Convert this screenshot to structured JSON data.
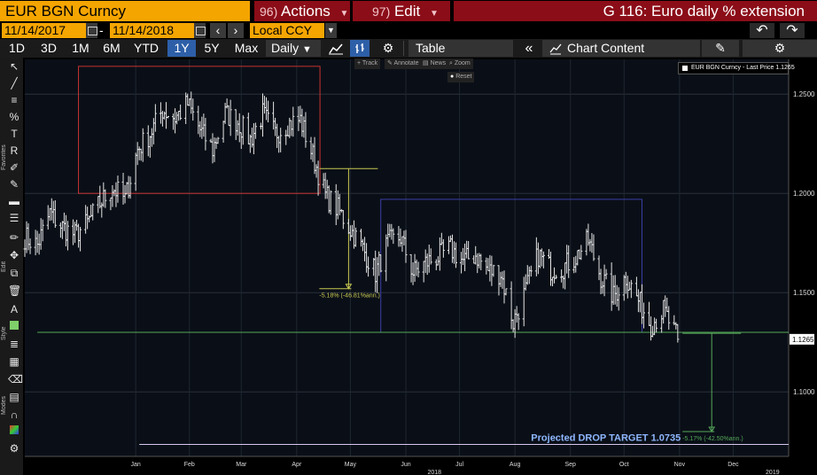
{
  "header": {
    "ticker": "EUR BGN Curncy",
    "actions_num": "96)",
    "actions_label": "Actions",
    "edit_num": "97)",
    "edit_label": "Edit",
    "title": "G 116: Euro daily % extension"
  },
  "daterow": {
    "from": "11/14/2017",
    "sep": "-",
    "to": "11/14/2018",
    "ccy": "Local CCY"
  },
  "toolbar": {
    "periods": [
      "1D",
      "3D",
      "1M",
      "6M",
      "YTD",
      "1Y",
      "5Y",
      "Max"
    ],
    "active_period": "1Y",
    "frequency": "Daily",
    "table_label": "Table",
    "content_label": "Chart Content"
  },
  "hud": {
    "track": "+ Track",
    "annotate": "Annotate",
    "news": "News",
    "zoom": "Zoom",
    "reset": "Reset"
  },
  "left_strip_labels": [
    "Favorites",
    "Edit",
    "Style",
    "Modes"
  ],
  "chart_data": {
    "type": "bar",
    "subtype": "ohlc",
    "title": "",
    "legend": [
      "EUR BGN Curncy - Last Price 1.1265"
    ],
    "legend_position": "top-right",
    "last_price": "1.1265",
    "x_range": [
      "2017-11-14",
      "2019-01-15"
    ],
    "x_ticks": [
      {
        "label": "Jan",
        "date": "2018-01-15"
      },
      {
        "label": "Feb",
        "date": "2018-02-14"
      },
      {
        "label": "Mar",
        "date": "2018-03-15"
      },
      {
        "label": "Apr",
        "date": "2018-04-15"
      },
      {
        "label": "May",
        "date": "2018-05-15"
      },
      {
        "label": "Jun",
        "date": "2018-06-15"
      },
      {
        "label": "Jul",
        "date": "2018-07-15"
      },
      {
        "label": "Aug",
        "date": "2018-08-15"
      },
      {
        "label": "Sep",
        "date": "2018-09-15"
      },
      {
        "label": "Oct",
        "date": "2018-10-15"
      },
      {
        "label": "Nov",
        "date": "2018-11-15"
      },
      {
        "label": "Dec",
        "date": "2018-12-15"
      }
    ],
    "year_labels": [
      {
        "label": "2018",
        "date": "2018-07-01"
      },
      {
        "label": "2019",
        "date": "2019-01-06"
      }
    ],
    "y_ticks": [
      "1.2500",
      "1.2000",
      "1.1500",
      "1.1000"
    ],
    "ylim": [
      1.0675,
      1.2675
    ],
    "grid": true,
    "series": [
      {
        "name": "EUR BGN Curncy - Last Price",
        "points": [
          [
            "2017-11-14",
            1.178
          ],
          [
            "2017-11-21",
            1.174
          ],
          [
            "2017-11-28",
            1.19
          ],
          [
            "2017-12-05",
            1.183
          ],
          [
            "2017-12-12",
            1.179
          ],
          [
            "2017-12-19",
            1.185
          ],
          [
            "2017-12-26",
            1.195
          ],
          [
            "2018-01-02",
            1.203
          ],
          [
            "2018-01-09",
            1.197
          ],
          [
            "2018-01-16",
            1.222
          ],
          [
            "2018-01-23",
            1.23
          ],
          [
            "2018-01-30",
            1.242
          ],
          [
            "2018-02-06",
            1.238
          ],
          [
            "2018-02-13",
            1.245
          ],
          [
            "2018-02-20",
            1.232
          ],
          [
            "2018-02-27",
            1.222
          ],
          [
            "2018-03-06",
            1.24
          ],
          [
            "2018-03-13",
            1.236
          ],
          [
            "2018-03-20",
            1.227
          ],
          [
            "2018-03-27",
            1.24
          ],
          [
            "2018-04-03",
            1.23
          ],
          [
            "2018-04-10",
            1.235
          ],
          [
            "2018-04-17",
            1.237
          ],
          [
            "2018-04-24",
            1.219
          ],
          [
            "2018-05-01",
            1.199
          ],
          [
            "2018-05-08",
            1.192
          ],
          [
            "2018-05-15",
            1.182
          ],
          [
            "2018-05-22",
            1.172
          ],
          [
            "2018-05-29",
            1.16
          ],
          [
            "2018-06-05",
            1.175
          ],
          [
            "2018-06-12",
            1.178
          ],
          [
            "2018-06-19",
            1.16
          ],
          [
            "2018-06-26",
            1.165
          ],
          [
            "2018-07-03",
            1.168
          ],
          [
            "2018-07-10",
            1.172
          ],
          [
            "2018-07-17",
            1.166
          ],
          [
            "2018-07-24",
            1.169
          ],
          [
            "2018-07-31",
            1.161
          ],
          [
            "2018-08-07",
            1.16
          ],
          [
            "2018-08-14",
            1.135
          ],
          [
            "2018-08-21",
            1.151
          ],
          [
            "2018-08-28",
            1.169
          ],
          [
            "2018-09-04",
            1.162
          ],
          [
            "2018-09-11",
            1.163
          ],
          [
            "2018-09-18",
            1.168
          ],
          [
            "2018-09-25",
            1.176
          ],
          [
            "2018-10-02",
            1.158
          ],
          [
            "2018-10-09",
            1.148
          ],
          [
            "2018-10-16",
            1.158
          ],
          [
            "2018-10-23",
            1.146
          ],
          [
            "2018-10-30",
            1.134
          ],
          [
            "2018-11-06",
            1.141
          ],
          [
            "2018-11-14",
            1.1265
          ]
        ]
      }
    ],
    "annotations": [
      {
        "type": "rect",
        "color": "#c83333",
        "x0": "2017-12-14",
        "x1": "2018-04-28",
        "y0": 1.2,
        "y1": 1.264
      },
      {
        "type": "rect",
        "color": "#3b3fa8",
        "x0": "2018-06-01",
        "x1": "2018-10-25",
        "y0": 1.13,
        "y1": 1.197
      },
      {
        "type": "measure",
        "color": "#c8c850",
        "x": "2018-05-14",
        "y_top": 1.2125,
        "y_bottom": 1.152,
        "label": "-5.18% (-46.81%ann.)"
      },
      {
        "type": "hline",
        "color": "#56a85a",
        "y": 1.13,
        "x0": "2017-11-21",
        "x1": "2019-01-15"
      },
      {
        "type": "hline",
        "color": "#d8c8ee",
        "y": 1.0735,
        "x0": "2018-01-17",
        "x1": "2019-01-15",
        "label": "Projected DROP TARGET 1.0735"
      },
      {
        "type": "measure",
        "color": "#56a85a",
        "x": "2018-12-03",
        "y_top": 1.1295,
        "y_bottom": 1.08,
        "label": "-5.17% (-42.50%ann.)"
      }
    ]
  }
}
